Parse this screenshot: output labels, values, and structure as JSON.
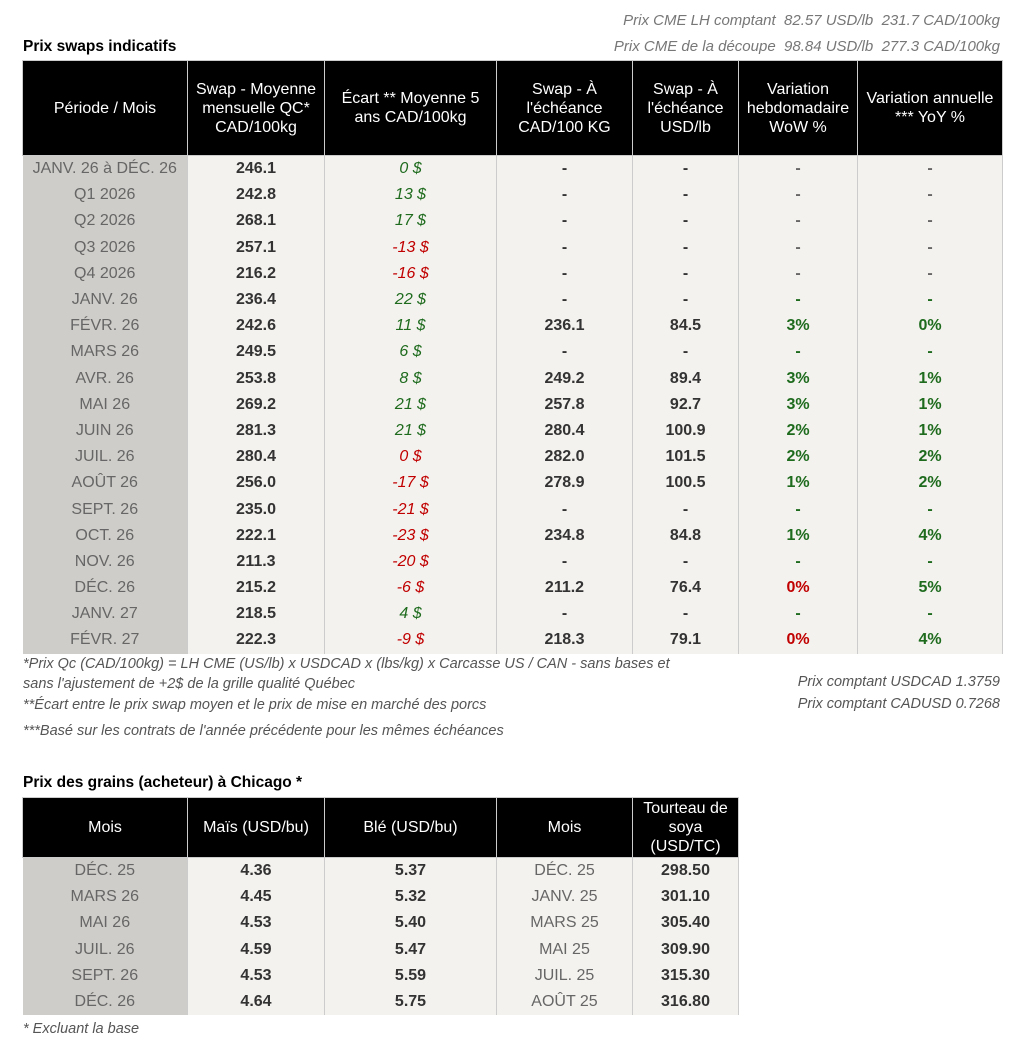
{
  "cme": {
    "lh_label": "Prix CME LH comptant",
    "lh_usd": "82.57 USD/lb",
    "lh_cad": "231.7 CAD/100kg",
    "cut_label": "Prix CME de la découpe",
    "cut_usd": "98.84 USD/lb",
    "cut_cad": "277.3 CAD/100kg"
  },
  "swaps": {
    "title": "Prix swaps indicatifs",
    "headers": [
      "Période / Mois",
      "Swap - Moyenne mensuelle QC* CAD/100kg",
      "Écart ** Moyenne 5 ans CAD/100kg",
      "Swap - À l'échéance CAD/100 KG",
      "Swap - À l'échéance USD/lb",
      "Variation hebdomadaire WoW %",
      "Variation annuelle *** YoY %"
    ],
    "rows": [
      {
        "period": "JANV. 26 à  DÉC. 26",
        "avg": "246.1",
        "ecart": "0 $",
        "ecart_tone": "pos",
        "cad": "-",
        "usd": "-",
        "wow": "-",
        "wow_tone": "neu",
        "yoy": "-",
        "yoy_tone": "neu"
      },
      {
        "period": "Q1 2026",
        "avg": "242.8",
        "ecart": "13 $",
        "ecart_tone": "pos",
        "cad": "-",
        "usd": "-",
        "wow": "-",
        "wow_tone": "neu",
        "yoy": "-",
        "yoy_tone": "neu"
      },
      {
        "period": "Q2 2026",
        "avg": "268.1",
        "ecart": "17 $",
        "ecart_tone": "pos",
        "cad": "-",
        "usd": "-",
        "wow": "-",
        "wow_tone": "neu",
        "yoy": "-",
        "yoy_tone": "neu"
      },
      {
        "period": "Q3 2026",
        "avg": "257.1",
        "ecart": "-13 $",
        "ecart_tone": "neg",
        "cad": "-",
        "usd": "-",
        "wow": "-",
        "wow_tone": "neu",
        "yoy": "-",
        "yoy_tone": "neu"
      },
      {
        "period": "Q4 2026",
        "avg": "216.2",
        "ecart": "-16 $",
        "ecart_tone": "neg",
        "cad": "-",
        "usd": "-",
        "wow": "-",
        "wow_tone": "neu",
        "yoy": "-",
        "yoy_tone": "neu"
      },
      {
        "period": "JANV. 26",
        "avg": "236.4",
        "ecart": "22 $",
        "ecart_tone": "pos",
        "cad": "-",
        "usd": "-",
        "wow": "-",
        "wow_tone": "pos",
        "yoy": "-",
        "yoy_tone": "pos"
      },
      {
        "period": "FÉVR. 26",
        "avg": "242.6",
        "ecart": "11 $",
        "ecart_tone": "pos",
        "cad": "236.1",
        "usd": "84.5",
        "wow": "3%",
        "wow_tone": "pos",
        "yoy": "0%",
        "yoy_tone": "pos"
      },
      {
        "period": "MARS 26",
        "avg": "249.5",
        "ecart": "6 $",
        "ecart_tone": "pos",
        "cad": "-",
        "usd": "-",
        "wow": "-",
        "wow_tone": "pos",
        "yoy": "-",
        "yoy_tone": "pos"
      },
      {
        "period": "AVR. 26",
        "avg": "253.8",
        "ecart": "8 $",
        "ecart_tone": "pos",
        "cad": "249.2",
        "usd": "89.4",
        "wow": "3%",
        "wow_tone": "pos",
        "yoy": "1%",
        "yoy_tone": "pos"
      },
      {
        "period": "MAI 26",
        "avg": "269.2",
        "ecart": "21 $",
        "ecart_tone": "pos",
        "cad": "257.8",
        "usd": "92.7",
        "wow": "3%",
        "wow_tone": "pos",
        "yoy": "1%",
        "yoy_tone": "pos"
      },
      {
        "period": "JUIN 26",
        "avg": "281.3",
        "ecart": "21 $",
        "ecart_tone": "pos",
        "cad": "280.4",
        "usd": "100.9",
        "wow": "2%",
        "wow_tone": "pos",
        "yoy": "1%",
        "yoy_tone": "pos"
      },
      {
        "period": "JUIL. 26",
        "avg": "280.4",
        "ecart": "0 $",
        "ecart_tone": "neg",
        "cad": "282.0",
        "usd": "101.5",
        "wow": "2%",
        "wow_tone": "pos",
        "yoy": "2%",
        "yoy_tone": "pos"
      },
      {
        "period": "AOÛT 26",
        "avg": "256.0",
        "ecart": "-17 $",
        "ecart_tone": "neg",
        "cad": "278.9",
        "usd": "100.5",
        "wow": "1%",
        "wow_tone": "pos",
        "yoy": "2%",
        "yoy_tone": "pos"
      },
      {
        "period": "SEPT. 26",
        "avg": "235.0",
        "ecart": "-21 $",
        "ecart_tone": "neg",
        "cad": "-",
        "usd": "-",
        "wow": "-",
        "wow_tone": "pos",
        "yoy": "-",
        "yoy_tone": "pos"
      },
      {
        "period": "OCT. 26",
        "avg": "222.1",
        "ecart": "-23 $",
        "ecart_tone": "neg",
        "cad": "234.8",
        "usd": "84.8",
        "wow": "1%",
        "wow_tone": "pos",
        "yoy": "4%",
        "yoy_tone": "pos"
      },
      {
        "period": "NOV. 26",
        "avg": "211.3",
        "ecart": "-20 $",
        "ecart_tone": "neg",
        "cad": "-",
        "usd": "-",
        "wow": "-",
        "wow_tone": "pos",
        "yoy": "-",
        "yoy_tone": "pos"
      },
      {
        "period": "DÉC. 26",
        "avg": "215.2",
        "ecart": "-6 $",
        "ecart_tone": "neg",
        "cad": "211.2",
        "usd": "76.4",
        "wow": "0%",
        "wow_tone": "neg",
        "yoy": "5%",
        "yoy_tone": "pos"
      },
      {
        "period": "JANV. 27",
        "avg": "218.5",
        "ecart": "4 $",
        "ecart_tone": "pos",
        "cad": "-",
        "usd": "-",
        "wow": "-",
        "wow_tone": "pos",
        "yoy": "-",
        "yoy_tone": "pos"
      },
      {
        "period": "FÉVR. 27",
        "avg": "222.3",
        "ecart": "-9 $",
        "ecart_tone": "neg",
        "cad": "218.3",
        "usd": "79.1",
        "wow": "0%",
        "wow_tone": "neg",
        "yoy": "4%",
        "yoy_tone": "pos"
      }
    ]
  },
  "notes": {
    "n1a": "*Prix Qc (CAD/100kg) = LH CME (US/lb) x USDCAD x (lbs/kg) x Carcasse US / CAN - sans bases et",
    "n1b": "sans l'ajustement de +2$ de la grille qualité Québec",
    "n2": "**Écart entre le prix swap moyen et le prix de mise en marché des porcs",
    "n3": "***Basé sur les contrats de l'année précédente pour les mêmes échéances",
    "usdcad": "Prix comptant USDCAD 1.3759",
    "cadusd": "Prix comptant CADUSD 0.7268"
  },
  "grains": {
    "title": "Prix des grains (acheteur) à Chicago *",
    "headers": [
      "Mois",
      "Maïs (USD/bu)",
      "Blé (USD/bu)",
      "Mois",
      "Tourteau de soya (USD/TC)"
    ],
    "rows": [
      {
        "m1": "DÉC. 25",
        "mais": "4.36",
        "ble": "5.37",
        "m2": "DÉC. 25",
        "soya": "298.50"
      },
      {
        "m1": "MARS 26",
        "mais": "4.45",
        "ble": "5.32",
        "m2": "JANV. 25",
        "soya": "301.10"
      },
      {
        "m1": "MAI 26",
        "mais": "4.53",
        "ble": "5.40",
        "m2": "MARS 25",
        "soya": "305.40"
      },
      {
        "m1": "JUIL. 26",
        "mais": "4.59",
        "ble": "5.47",
        "m2": "MAI 25",
        "soya": "309.90"
      },
      {
        "m1": "SEPT. 26",
        "mais": "4.53",
        "ble": "5.59",
        "m2": "JUIL. 25",
        "soya": "315.30"
      },
      {
        "m1": "DÉC. 26",
        "mais": "4.64",
        "ble": "5.75",
        "m2": "AOÛT 25",
        "soya": "316.80"
      }
    ],
    "note": "* Excluant la base"
  }
}
